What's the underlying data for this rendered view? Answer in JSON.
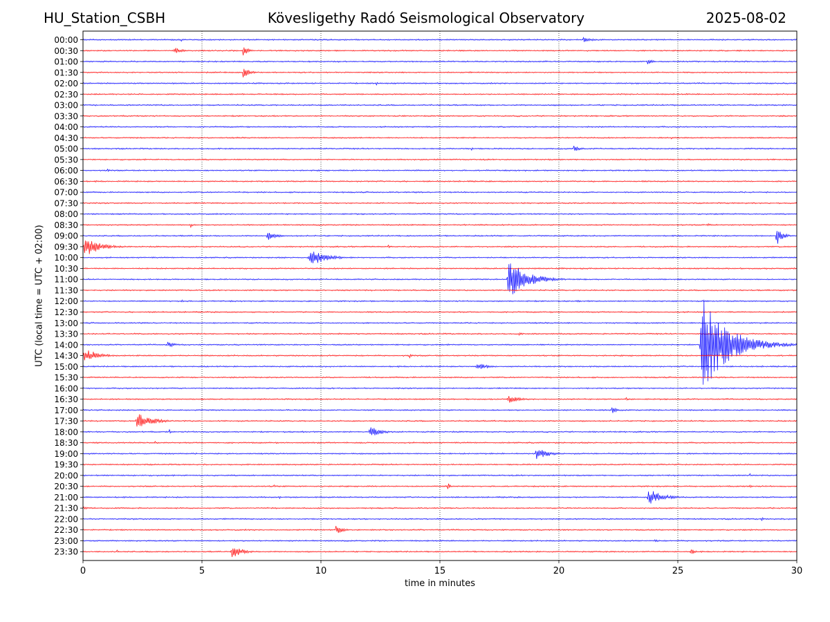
{
  "header": {
    "station": "HU_Station_CSBH",
    "title": "Kövesligethy Radó Seismological Observatory",
    "date": "2025-08-02"
  },
  "chart_data": {
    "type": "line",
    "title": "Kövesligethy Radó Seismological Observatory",
    "xlabel": "time in minutes",
    "ylabel": "UTC (local time = UTC + 02:00)",
    "xlim": [
      0,
      30
    ],
    "xticks": [
      0,
      5,
      10,
      15,
      20,
      25,
      30
    ],
    "grid_x": true,
    "row_labels": [
      "00:00",
      "00:30",
      "01:00",
      "01:30",
      "02:00",
      "02:30",
      "03:00",
      "03:30",
      "04:00",
      "04:30",
      "05:00",
      "05:30",
      "06:00",
      "06:30",
      "07:00",
      "07:30",
      "08:00",
      "08:30",
      "09:00",
      "09:30",
      "10:00",
      "10:30",
      "11:00",
      "11:30",
      "12:00",
      "12:30",
      "13:00",
      "13:30",
      "14:00",
      "14:30",
      "15:00",
      "15:30",
      "16:00",
      "16:30",
      "17:00",
      "17:30",
      "18:00",
      "18:30",
      "19:00",
      "19:30",
      "20:00",
      "20:30",
      "21:00",
      "21:30",
      "22:00",
      "22:30",
      "23:00",
      "23:30"
    ],
    "row_colors": [
      "#0000ff",
      "#ff0000"
    ],
    "events": [
      {
        "row": "00:00",
        "start": 4.1,
        "dur": 0.3,
        "amp": 3
      },
      {
        "row": "00:00",
        "start": 21.0,
        "dur": 1.2,
        "amp": 5
      },
      {
        "row": "00:30",
        "start": 3.8,
        "dur": 1.2,
        "amp": 5
      },
      {
        "row": "00:30",
        "start": 6.7,
        "dur": 0.8,
        "amp": 8
      },
      {
        "row": "01:00",
        "start": 23.7,
        "dur": 0.6,
        "amp": 6
      },
      {
        "row": "01:30",
        "start": 6.7,
        "dur": 0.9,
        "amp": 10
      },
      {
        "row": "02:00",
        "start": 12.3,
        "dur": 0.4,
        "amp": 3
      },
      {
        "row": "04:30",
        "start": 24.7,
        "dur": 0.6,
        "amp": 3
      },
      {
        "row": "05:00",
        "start": 16.3,
        "dur": 0.2,
        "amp": 5
      },
      {
        "row": "05:00",
        "start": 20.6,
        "dur": 1.0,
        "amp": 5
      },
      {
        "row": "06:00",
        "start": 1.0,
        "dur": 0.4,
        "amp": 4
      },
      {
        "row": "08:30",
        "start": 4.5,
        "dur": 0.4,
        "amp": 4
      },
      {
        "row": "08:30",
        "start": 16.0,
        "dur": 0.4,
        "amp": 3
      },
      {
        "row": "08:30",
        "start": 26.2,
        "dur": 0.5,
        "amp": 4
      },
      {
        "row": "09:00",
        "start": 7.7,
        "dur": 1.4,
        "amp": 7
      },
      {
        "row": "09:00",
        "start": 29.1,
        "dur": 0.9,
        "amp": 16
      },
      {
        "row": "09:30",
        "start": 0.0,
        "dur": 2.5,
        "amp": 14
      },
      {
        "row": "09:30",
        "start": 12.8,
        "dur": 0.2,
        "amp": 6
      },
      {
        "row": "10:00",
        "start": 9.45,
        "dur": 2.8,
        "amp": 12
      },
      {
        "row": "11:00",
        "start": 17.8,
        "dur": 3.0,
        "amp": 28
      },
      {
        "row": "12:00",
        "start": 4.1,
        "dur": 0.5,
        "amp": 3
      },
      {
        "row": "12:00",
        "start": 20.8,
        "dur": 0.3,
        "amp": 3
      },
      {
        "row": "13:30",
        "start": 18.3,
        "dur": 0.5,
        "amp": 3
      },
      {
        "row": "14:00",
        "start": 3.5,
        "dur": 1.2,
        "amp": 5
      },
      {
        "row": "14:00",
        "start": 25.9,
        "dur": 4.1,
        "amp": 70
      },
      {
        "row": "14:30",
        "start": 0.0,
        "dur": 2.0,
        "amp": 12
      },
      {
        "row": "14:30",
        "start": 13.7,
        "dur": 0.5,
        "amp": 4
      },
      {
        "row": "15:00",
        "start": 16.5,
        "dur": 1.8,
        "amp": 6
      },
      {
        "row": "16:30",
        "start": 17.8,
        "dur": 1.8,
        "amp": 6
      },
      {
        "row": "16:30",
        "start": 22.8,
        "dur": 0.5,
        "amp": 3
      },
      {
        "row": "17:00",
        "start": 22.2,
        "dur": 0.6,
        "amp": 8
      },
      {
        "row": "17:30",
        "start": 2.2,
        "dur": 2.4,
        "amp": 12
      },
      {
        "row": "18:00",
        "start": 3.6,
        "dur": 0.2,
        "amp": 6
      },
      {
        "row": "18:00",
        "start": 12.0,
        "dur": 1.8,
        "amp": 8
      },
      {
        "row": "18:30",
        "start": 3.0,
        "dur": 0.5,
        "amp": 3
      },
      {
        "row": "19:00",
        "start": 19.0,
        "dur": 1.8,
        "amp": 10
      },
      {
        "row": "20:00",
        "start": 28.0,
        "dur": 0.3,
        "amp": 4
      },
      {
        "row": "20:30",
        "start": 8.0,
        "dur": 0.3,
        "amp": 4
      },
      {
        "row": "20:30",
        "start": 15.3,
        "dur": 0.4,
        "amp": 7
      },
      {
        "row": "20:30",
        "start": 28.0,
        "dur": 0.3,
        "amp": 4
      },
      {
        "row": "21:00",
        "start": 8.2,
        "dur": 0.3,
        "amp": 4
      },
      {
        "row": "21:00",
        "start": 23.7,
        "dur": 2.2,
        "amp": 12
      },
      {
        "row": "21:00",
        "start": 29.7,
        "dur": 0.3,
        "amp": 4
      },
      {
        "row": "21:30",
        "start": 0.0,
        "dur": 0.6,
        "amp": 4
      },
      {
        "row": "22:00",
        "start": 28.5,
        "dur": 0.5,
        "amp": 3
      },
      {
        "row": "22:30",
        "start": 10.6,
        "dur": 1.0,
        "amp": 8
      },
      {
        "row": "23:00",
        "start": 24.0,
        "dur": 0.5,
        "amp": 4
      },
      {
        "row": "23:30",
        "start": 1.4,
        "dur": 0.2,
        "amp": 5
      },
      {
        "row": "23:30",
        "start": 6.2,
        "dur": 1.8,
        "amp": 9
      },
      {
        "row": "23:30",
        "start": 25.5,
        "dur": 0.8,
        "amp": 5
      }
    ]
  }
}
